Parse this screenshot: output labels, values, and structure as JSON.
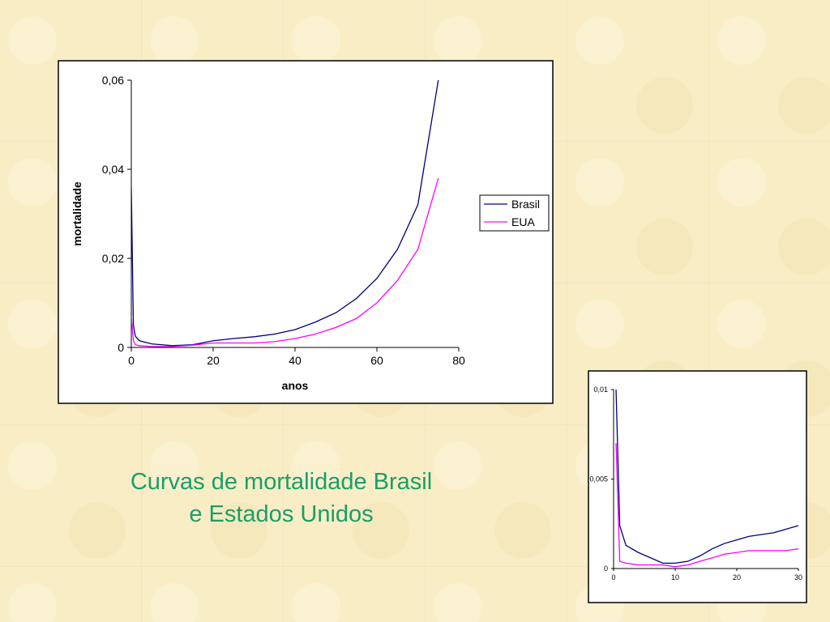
{
  "caption": "Curvas de mortalidade Brasil e Estados Unidos",
  "chart_data": [
    {
      "type": "line",
      "x_label": "anos",
      "y_label": "mortalidade",
      "x": [
        0,
        0.5,
        1,
        2,
        5,
        10,
        15,
        20,
        25,
        30,
        35,
        40,
        45,
        50,
        55,
        60,
        65,
        70,
        75
      ],
      "series": [
        {
          "name": "Brasil",
          "color": "#000080",
          "values": [
            0.036,
            0.005,
            0.0025,
            0.0015,
            0.0008,
            0.0004,
            0.0006,
            0.0015,
            0.002,
            0.0024,
            0.003,
            0.004,
            0.0057,
            0.0078,
            0.011,
            0.0155,
            0.022,
            0.032,
            0.06
          ]
        },
        {
          "name": "EUA",
          "color": "#ff00ff",
          "values": [
            0.007,
            0.0015,
            0.0006,
            0.0004,
            0.0002,
            0.0002,
            0.0005,
            0.001,
            0.001,
            0.001,
            0.0013,
            0.002,
            0.003,
            0.0045,
            0.0065,
            0.01,
            0.015,
            0.022,
            0.038
          ]
        }
      ],
      "xlim": [
        0,
        80
      ],
      "xticks": [
        0,
        20,
        40,
        60,
        80
      ],
      "ylim": [
        0,
        0.06
      ],
      "yticks": [
        0,
        {
          "value": 0.02,
          "label": "0,02"
        },
        {
          "value": 0.04,
          "label": "0,04"
        },
        {
          "value": 0.06,
          "label": "0,06"
        }
      ],
      "legend": "right"
    },
    {
      "type": "line",
      "x": [
        0.4,
        1,
        2,
        4,
        6,
        8,
        10,
        12,
        14,
        16,
        18,
        20,
        22,
        24,
        26,
        28,
        30
      ],
      "series": [
        {
          "color": "#000080",
          "values": [
            0.01,
            0.0024,
            0.0013,
            0.0009,
            0.0006,
            0.0003,
            0.0003,
            0.0004,
            0.0007,
            0.0011,
            0.0014,
            0.0016,
            0.0018,
            0.0019,
            0.002,
            0.0022,
            0.0024
          ]
        },
        {
          "color": "#ff00ff",
          "values": [
            0.007,
            0.0004,
            0.0003,
            0.0002,
            0.0002,
            0.0002,
            0.0001,
            0.0002,
            0.0004,
            0.0006,
            0.0008,
            0.0009,
            0.001,
            0.001,
            0.001,
            0.001,
            0.0011
          ]
        }
      ],
      "xlim": [
        0,
        30
      ],
      "xticks": [
        0,
        10,
        20,
        30
      ],
      "ylim": [
        0,
        0.01
      ],
      "yticks": [
        0,
        {
          "value": 0.005,
          "label": "0,005"
        },
        {
          "value": 0.01,
          "label": "0,01"
        }
      ]
    }
  ]
}
